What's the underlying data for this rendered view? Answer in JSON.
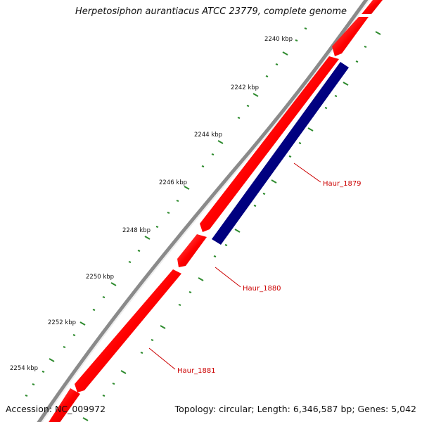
{
  "title": "Herpetosiphon aurantiacus ATCC 23779, complete genome",
  "footer": {
    "accession": "Accession: NC_009972",
    "summary": "Topology: circular; Length: 6,346,587 bp; Genes: 5,042"
  },
  "colors": {
    "forward_gene": "#ff1010",
    "reverse_gene": "#000080",
    "backbone": "#8a8a8a",
    "ticks": "#2e8b2e",
    "gene_label": "#cc0000"
  },
  "scale": {
    "unit": "kbp",
    "labels": [
      "2240 kbp",
      "2242 kbp",
      "2244 kbp",
      "2246 kbp",
      "2248 kbp",
      "2250 kbp",
      "2252 kbp",
      "2254 kbp"
    ]
  },
  "genes": [
    {
      "name": "Haur_1879",
      "strand": "reverse"
    },
    {
      "name": "Haur_1880",
      "strand": "forward"
    },
    {
      "name": "Haur_1881",
      "strand": "forward"
    }
  ]
}
